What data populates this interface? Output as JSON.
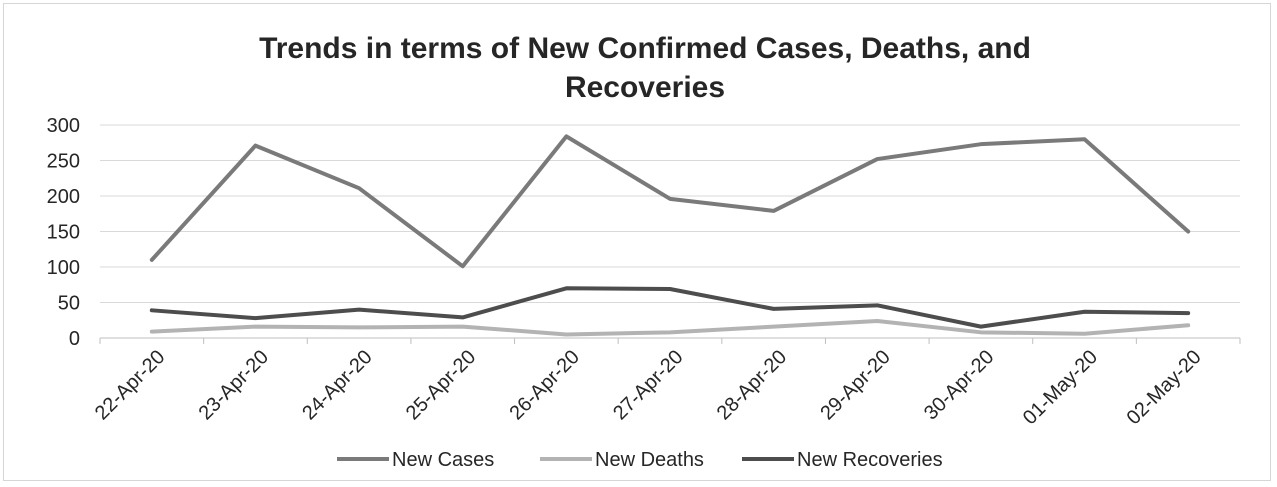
{
  "chart_data": {
    "type": "line",
    "title": "Trends in terms of New Confirmed Cases, Deaths, and Recoveries",
    "title_lines": [
      "Trends in terms of New Confirmed Cases, Deaths, and",
      "Recoveries"
    ],
    "categories": [
      "22-Apr-20",
      "23-Apr-20",
      "24-Apr-20",
      "25-Apr-20",
      "26-Apr-20",
      "27-Apr-20",
      "28-Apr-20",
      "29-Apr-20",
      "30-Apr-20",
      "01-May-20",
      "02-May-20"
    ],
    "y_ticks": [
      0,
      50,
      100,
      150,
      200,
      250,
      300
    ],
    "ylim": [
      0,
      300
    ],
    "grid": true,
    "legend_position": "bottom",
    "series": [
      {
        "name": "New Cases",
        "color": "#7a7a7a",
        "values": [
          110,
          271,
          211,
          101,
          284,
          196,
          179,
          252,
          273,
          280,
          150
        ]
      },
      {
        "name": "New Deaths",
        "color": "#b3b3b3",
        "values": [
          9,
          16,
          15,
          16,
          5,
          8,
          16,
          24,
          8,
          6,
          18
        ]
      },
      {
        "name": "New Recoveries",
        "color": "#4d4d4d",
        "values": [
          39,
          28,
          40,
          29,
          70,
          69,
          41,
          46,
          16,
          37,
          35
        ]
      }
    ]
  }
}
